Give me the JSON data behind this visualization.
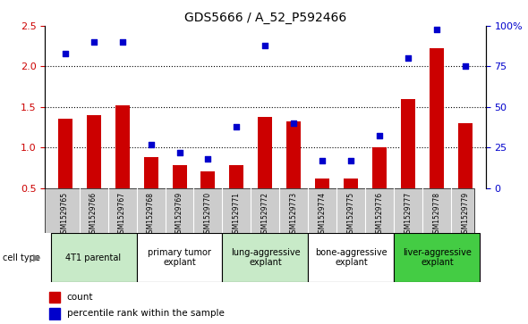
{
  "title": "GDS5666 / A_52_P592466",
  "samples": [
    "GSM1529765",
    "GSM1529766",
    "GSM1529767",
    "GSM1529768",
    "GSM1529769",
    "GSM1529770",
    "GSM1529771",
    "GSM1529772",
    "GSM1529773",
    "GSM1529774",
    "GSM1529775",
    "GSM1529776",
    "GSM1529777",
    "GSM1529778",
    "GSM1529779"
  ],
  "counts": [
    1.35,
    1.4,
    1.52,
    0.88,
    0.78,
    0.7,
    0.78,
    1.38,
    1.32,
    0.62,
    0.62,
    1.0,
    1.6,
    2.22,
    1.3
  ],
  "percentile_ranks": [
    83,
    90,
    90,
    27,
    22,
    18,
    38,
    88,
    40,
    17,
    17,
    32,
    80,
    98,
    75
  ],
  "cell_type_groups": [
    {
      "label": "4T1 parental",
      "start": 0,
      "end": 3,
      "color": "#c8eac8"
    },
    {
      "label": "primary tumor\nexplant",
      "start": 3,
      "end": 6,
      "color": "#ffffff"
    },
    {
      "label": "lung-aggressive\nexplant",
      "start": 6,
      "end": 9,
      "color": "#c8eac8"
    },
    {
      "label": "bone-aggressive\nexplant",
      "start": 9,
      "end": 12,
      "color": "#ffffff"
    },
    {
      "label": "liver-aggressive\nexplant",
      "start": 12,
      "end": 15,
      "color": "#44cc44"
    }
  ],
  "ylim_left": [
    0.5,
    2.5
  ],
  "ylim_right": [
    0,
    100
  ],
  "yticks_left": [
    0.5,
    1.0,
    1.5,
    2.0,
    2.5
  ],
  "yticks_right": [
    0,
    25,
    50,
    75,
    100
  ],
  "ytick_right_labels": [
    "0",
    "25",
    "50",
    "75",
    "100%"
  ],
  "bar_color": "#cc0000",
  "dot_color": "#0000cc",
  "bar_width": 0.5,
  "sample_row_color": "#cccccc",
  "legend_count_color": "#cc0000",
  "legend_dot_color": "#0000cc",
  "gridlines": [
    1.0,
    1.5,
    2.0
  ]
}
